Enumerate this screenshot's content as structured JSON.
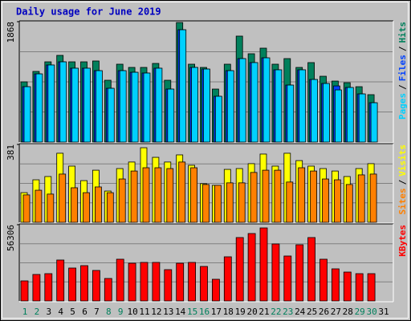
{
  "chart_data": [
    {
      "type": "bar",
      "title": "Daily usage for June 2019",
      "ylim": [
        0,
        1868
      ],
      "yticks": [
        1868
      ],
      "legend_separator": "/",
      "series": [
        {
          "name": "Hits",
          "color": "#00805c",
          "values": [
            934,
            1096,
            1245,
            1345,
            1245,
            1245,
            1258,
            959,
            1208,
            1158,
            1158,
            1220,
            959,
            1855,
            1208,
            1158,
            822,
            1208,
            1644,
            1370,
            1457,
            1208,
            1295,
            1158,
            1233,
            1021,
            946,
            921,
            859,
            735,
            null
          ]
        },
        {
          "name": "Files",
          "color": "#0040ff",
          "values": [
            859,
            1058,
            1196,
            1245,
            1146,
            1146,
            1108,
            834,
            1108,
            1083,
            1071,
            1146,
            822,
            1743,
            1158,
            1133,
            710,
            1108,
            1295,
            1233,
            1307,
            1121,
            884,
            1121,
            971,
            909,
            871,
            847,
            747,
            610,
            null
          ]
        },
        {
          "name": "Pages",
          "color": "#00d0ff",
          "values": [
            859,
            1058,
            1196,
            1245,
            1146,
            1146,
            1108,
            834,
            1108,
            1083,
            1071,
            1146,
            822,
            1743,
            1158,
            1133,
            710,
            1108,
            1295,
            1233,
            1307,
            1121,
            884,
            1121,
            971,
            909,
            809,
            847,
            747,
            610,
            null
          ]
        }
      ]
    },
    {
      "type": "bar",
      "ylim": [
        0,
        381
      ],
      "yticks": [
        381
      ],
      "legend_separator": "/",
      "series": [
        {
          "name": "Visits",
          "color": "#ffff00",
          "values": [
            145,
            208,
            224,
            338,
            275,
            204,
            255,
            153,
            263,
            295,
            365,
            318,
            295,
            330,
            279,
            189,
            181,
            259,
            263,
            287,
            334,
            275,
            338,
            302,
            275,
            263,
            251,
            224,
            263,
            287,
            null
          ]
        },
        {
          "name": "Sites",
          "color": "#ff8000",
          "values": [
            134,
            157,
            138,
            236,
            169,
            145,
            173,
            145,
            212,
            251,
            267,
            267,
            263,
            295,
            267,
            185,
            181,
            193,
            193,
            244,
            255,
            255,
            197,
            267,
            251,
            212,
            208,
            185,
            232,
            236,
            null
          ]
        }
      ]
    },
    {
      "type": "bar",
      "ylim": [
        0,
        56306
      ],
      "yticks": [
        56306
      ],
      "categories": [
        "1",
        "2",
        "3",
        "4",
        "5",
        "6",
        "7",
        "8",
        "9",
        "10",
        "11",
        "12",
        "13",
        "14",
        "15",
        "16",
        "17",
        "18",
        "19",
        "20",
        "21",
        "22",
        "23",
        "24",
        "25",
        "26",
        "27",
        "28",
        "29",
        "30",
        "31"
      ],
      "category_colors": [
        "#00805c",
        "#00805c",
        "#000000",
        "#000000",
        "#000000",
        "#000000",
        "#000000",
        "#00805c",
        "#00805c",
        "#000000",
        "#000000",
        "#000000",
        "#000000",
        "#000000",
        "#00805c",
        "#00805c",
        "#000000",
        "#000000",
        "#000000",
        "#000000",
        "#000000",
        "#00805c",
        "#00805c",
        "#000000",
        "#000000",
        "#000000",
        "#000000",
        "#000000",
        "#00805c",
        "#00805c",
        "#000000"
      ],
      "series": [
        {
          "name": "KBytes",
          "color": "#ff0000",
          "values": [
            14818,
            19560,
            20152,
            30229,
            24302,
            26080,
            22523,
            16596,
            30822,
            27858,
            28450,
            28450,
            23116,
            27858,
            28450,
            25487,
            16003,
            32600,
            46824,
            49788,
            53937,
            42082,
            33192,
            41490,
            46824,
            30822,
            23709,
            21337,
            20152,
            20152,
            null
          ]
        }
      ]
    }
  ]
}
